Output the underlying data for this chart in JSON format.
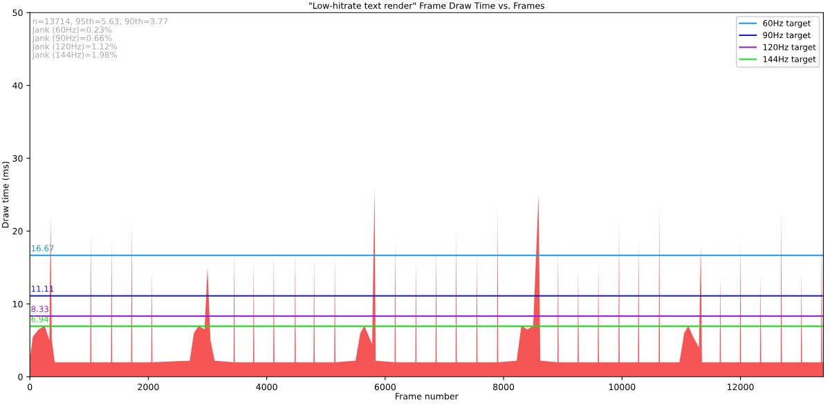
{
  "chart_data": {
    "type": "area",
    "title": "\"Low-hitrate text render\" Frame Draw Time vs. Frames",
    "xlabel": "Frame number",
    "ylabel": "Draw time (ms)",
    "xlim": [
      0,
      13400
    ],
    "xticks": [
      0,
      2000,
      4000,
      6000,
      8000,
      10000,
      12000
    ],
    "ylim": [
      0,
      50
    ],
    "yticks": [
      0,
      10,
      20,
      30,
      40,
      50
    ],
    "grid": false,
    "legend": "top right",
    "series": [
      {
        "color": "#f55555",
        "x": [
          0,
          50,
          150,
          250,
          330,
          350,
          370,
          420,
          1020,
          1030,
          1040,
          1370,
          1380,
          1390,
          1710,
          1720,
          1730,
          2050,
          2060,
          2070,
          2700,
          2770,
          2850,
          2950,
          3000,
          3050,
          3120,
          3440,
          3450,
          3460,
          3770,
          3780,
          3790,
          4110,
          4120,
          4130,
          4470,
          4480,
          4490,
          4790,
          4800,
          4810,
          5140,
          5150,
          5160,
          5500,
          5580,
          5650,
          5700,
          5780,
          5820,
          5840,
          6160,
          6170,
          6180,
          6510,
          6520,
          6530,
          6850,
          6860,
          6870,
          7190,
          7200,
          7210,
          7540,
          7550,
          7560,
          7890,
          7900,
          7910,
          8220,
          8300,
          8400,
          8500,
          8590,
          8620,
          8910,
          8920,
          8930,
          9250,
          9260,
          9270,
          9590,
          9600,
          9610,
          9940,
          9950,
          9960,
          10270,
          10280,
          10290,
          10620,
          10630,
          10640,
          10970,
          11050,
          11120,
          11200,
          11300,
          11330,
          11350,
          11650,
          11660,
          11670,
          11990,
          12000,
          12010,
          12330,
          12340,
          12350,
          12680,
          12690,
          12700,
          13020,
          13030,
          13040,
          13360,
          13370,
          13380,
          13400
        ],
        "values": [
          2.5,
          5.5,
          6.5,
          7.0,
          5.0,
          22,
          5.0,
          2.0,
          2.0,
          20,
          2.0,
          2.0,
          19,
          2.0,
          2.0,
          21.5,
          2.0,
          2.0,
          14.5,
          2.0,
          2.2,
          6.0,
          7.0,
          6.5,
          15,
          5.0,
          2.2,
          2.0,
          17.5,
          2.0,
          2.0,
          16,
          2.0,
          2.0,
          17,
          2.0,
          2.0,
          17.5,
          2.0,
          2.0,
          16.5,
          2.0,
          2.0,
          16.5,
          2.0,
          2.2,
          6.0,
          7.0,
          6.0,
          4.5,
          26,
          2.2,
          2.0,
          19,
          2.0,
          2.0,
          16,
          2.0,
          2.0,
          18,
          2.0,
          2.0,
          20,
          2.0,
          2.0,
          17,
          2.0,
          2.0,
          23.5,
          2.0,
          2.2,
          7.0,
          6.5,
          7.0,
          25,
          2.2,
          2.0,
          18,
          2.0,
          2.0,
          15,
          2.0,
          2.0,
          16,
          2.0,
          2.0,
          21.5,
          2.0,
          2.0,
          19,
          2.0,
          2.0,
          23.5,
          2.0,
          2.0,
          6.0,
          7.0,
          5.5,
          4.0,
          18,
          2.0,
          2.0,
          14,
          2.0,
          2.0,
          19,
          2.0,
          2.0,
          14,
          2.0,
          2.0,
          23,
          2.0,
          2.0,
          14.5,
          2.0,
          2.0,
          18.5,
          2.0,
          2.0
        ]
      },
      {
        "type": "line",
        "name": "60Hz target",
        "color": "#2196d9",
        "x": [
          0,
          13400
        ],
        "values": [
          16.67,
          16.67
        ]
      },
      {
        "type": "line",
        "name": "90Hz target",
        "color": "#1a1ad6",
        "x": [
          0,
          13400
        ],
        "values": [
          11.11,
          11.11
        ]
      },
      {
        "type": "line",
        "name": "120Hz target",
        "color": "#9b1fd6",
        "x": [
          0,
          13400
        ],
        "values": [
          8.33,
          8.33
        ]
      },
      {
        "type": "line",
        "name": "144Hz target",
        "color": "#22dd22",
        "x": [
          0,
          13400
        ],
        "values": [
          6.94,
          6.94
        ]
      }
    ],
    "annotations": [
      "n=13714, 95th=5.63, 90th=3.77",
      "Jank (60Hz)=0.23%",
      "Jank (90Hz)=0.66%",
      "Jank (120Hz)=1.12%",
      "Jank (144Hz)=1.98%",
      {
        "text": "16.67",
        "y": 16.67
      },
      {
        "text": "11.11",
        "y": 11.11
      },
      {
        "text": "8.33",
        "y": 8.33
      },
      {
        "text": "6.94",
        "y": 6.94
      }
    ]
  }
}
